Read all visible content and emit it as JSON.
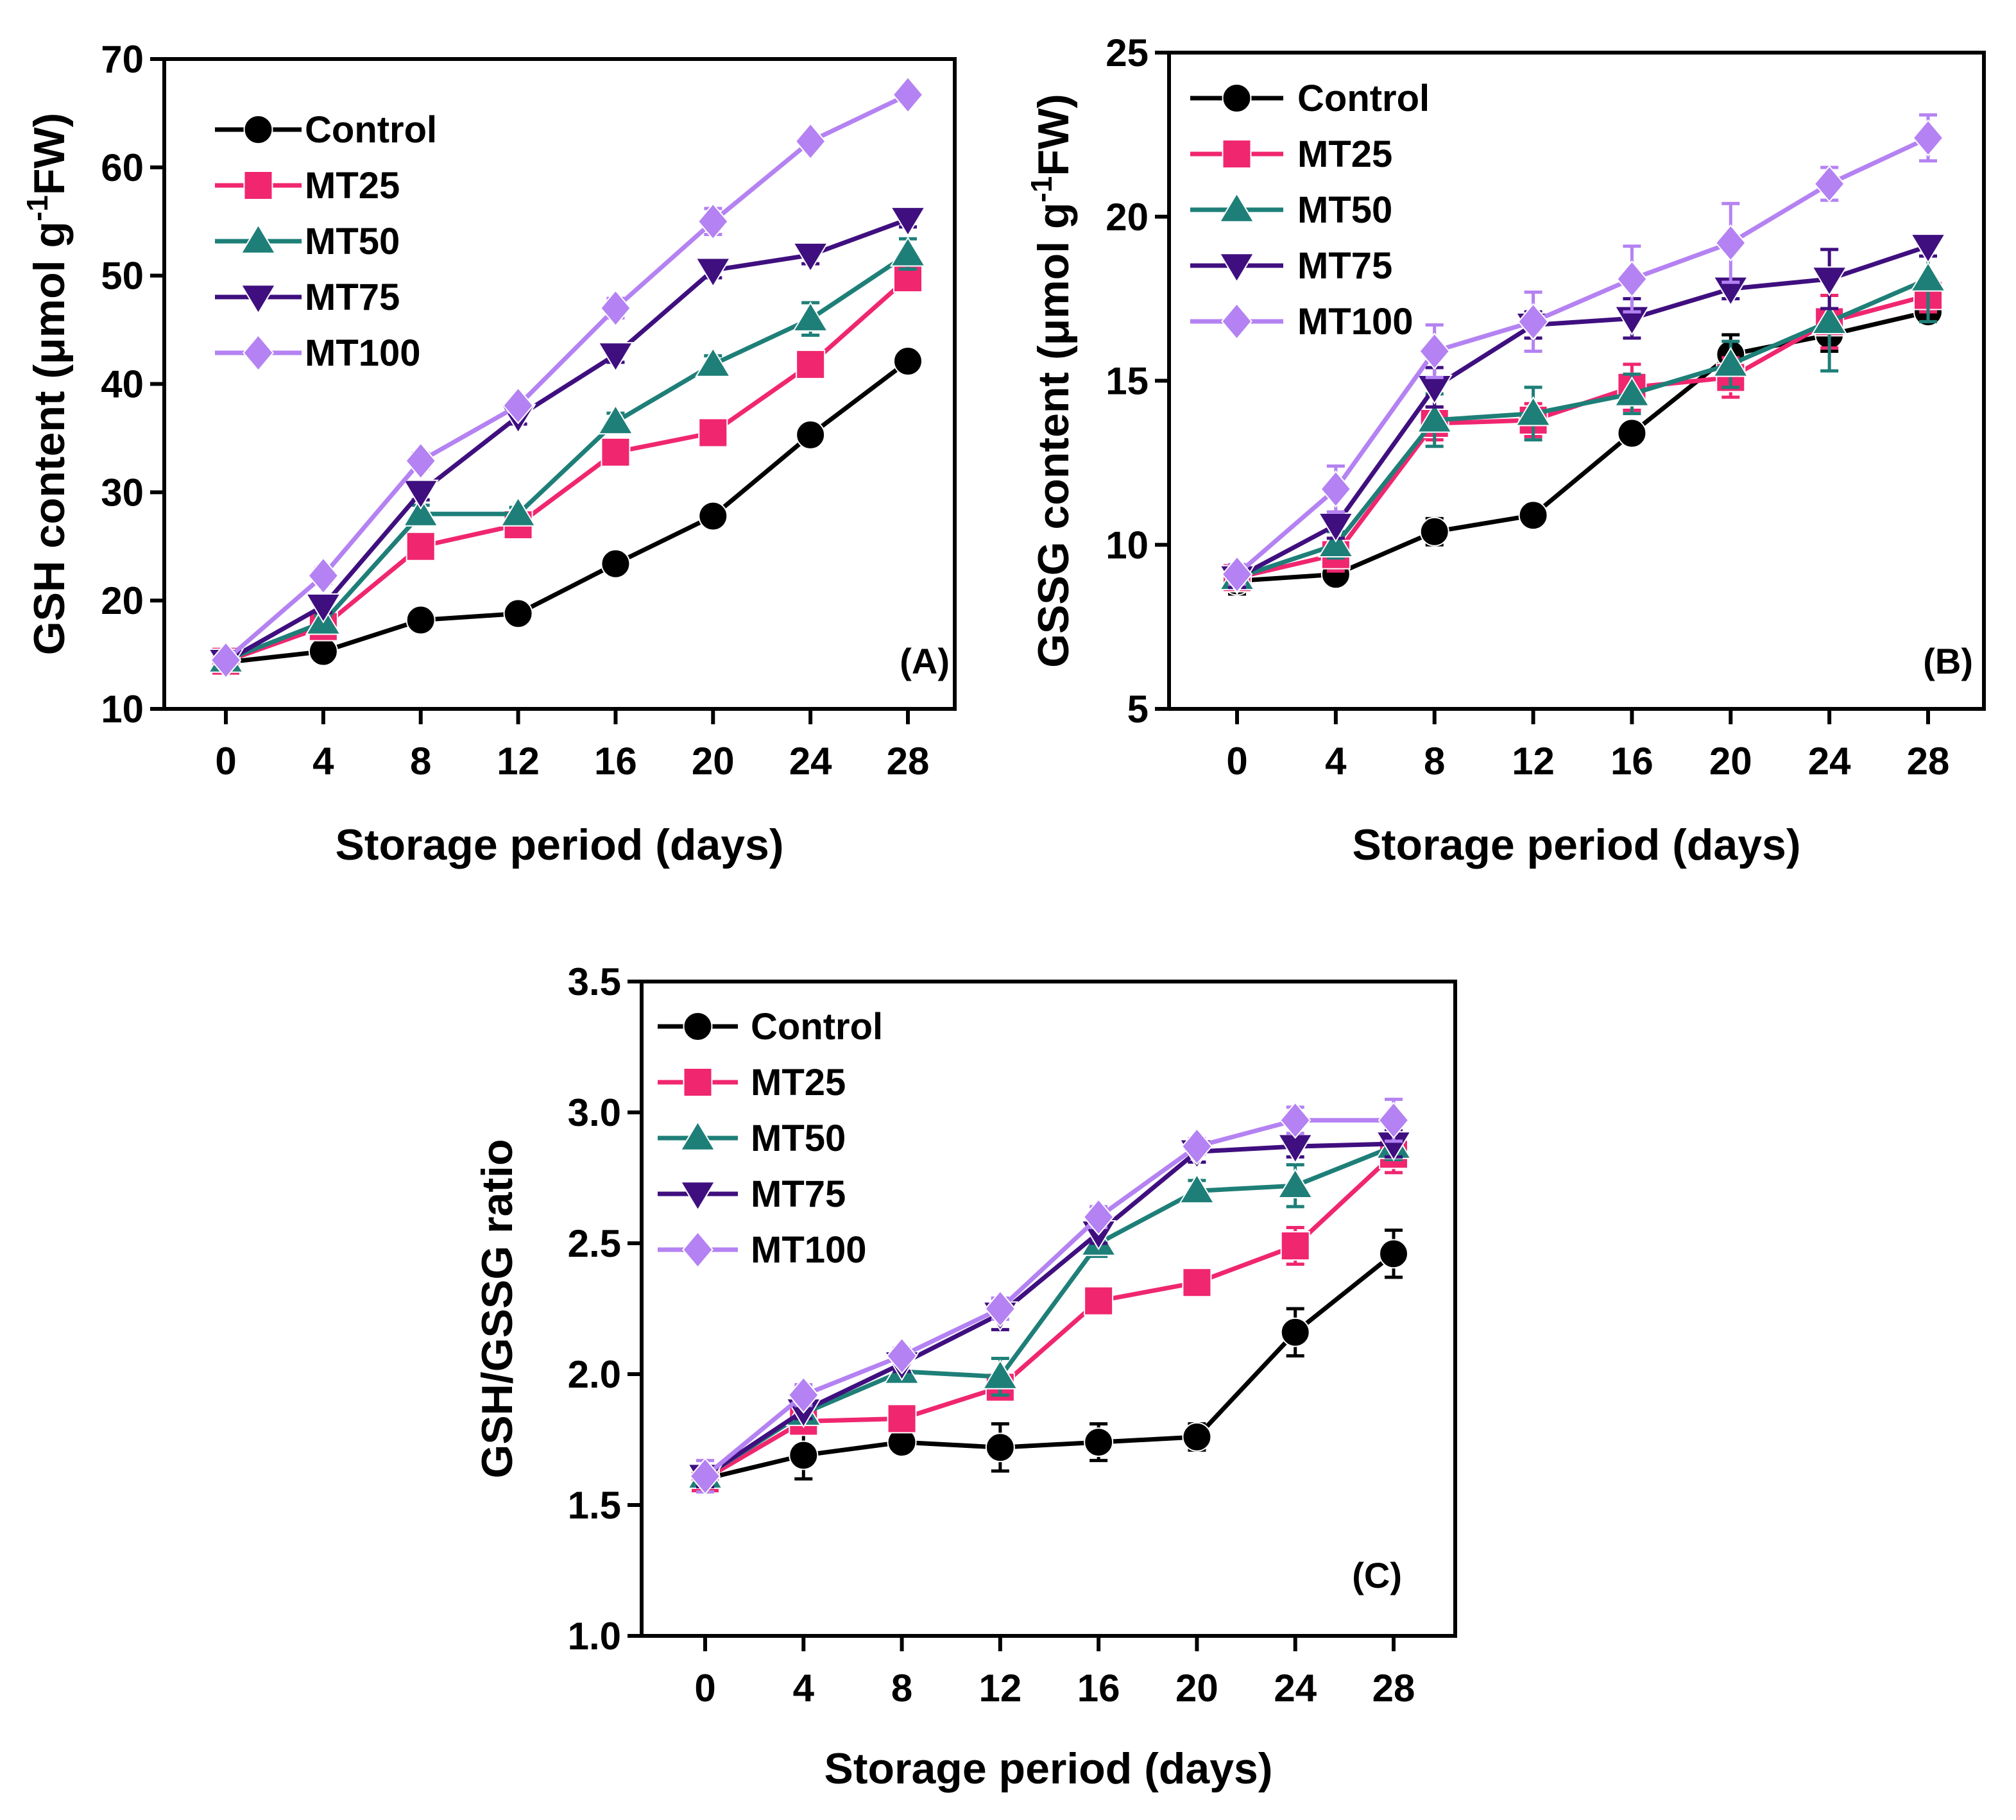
{
  "colors": {
    "Control": "#000000",
    "MT25": "#f0266f",
    "MT50": "#1e7f78",
    "MT75": "#3f0f7f",
    "MT100": "#b482f2"
  },
  "chart_data": [
    {
      "type": "line",
      "panel": "(A)",
      "xlabel": "Storage period (days)",
      "ylabel": "GSH content (μmol g-1FW)",
      "ylabel_parts": {
        "base": "GSH content (μmol g",
        "sup": "-1",
        "end": "FW)"
      },
      "x": [
        0,
        4,
        8,
        12,
        16,
        20,
        24,
        28
      ],
      "xticks": [
        "0",
        "4",
        "8",
        "12",
        "16",
        "20",
        "24",
        "28"
      ],
      "ylim": [
        10,
        70
      ],
      "yticks": [
        "10",
        "20",
        "30",
        "40",
        "50",
        "60",
        "70"
      ],
      "legend_position": "top-left",
      "series": [
        {
          "name": "Control",
          "marker": "circle",
          "values": [
            14.3,
            15.3,
            18.2,
            18.8,
            23.4,
            27.8,
            35.3,
            42.1
          ],
          "errors": [
            0.5,
            0.5,
            0.5,
            0.5,
            0.6,
            0.6,
            0.6,
            0.7
          ]
        },
        {
          "name": "MT25",
          "marker": "square",
          "values": [
            14.4,
            17.6,
            25.0,
            27.0,
            33.7,
            35.5,
            41.8,
            49.8
          ],
          "errors": [
            0.5,
            0.6,
            0.7,
            0.7,
            0.7,
            0.7,
            0.8,
            0.8
          ]
        },
        {
          "name": "MT50",
          "marker": "triangle-up",
          "values": [
            14.5,
            18.0,
            28.0,
            28.0,
            36.5,
            41.8,
            46.0,
            52.0
          ],
          "errors": [
            0.5,
            0.6,
            0.8,
            0.6,
            0.8,
            0.8,
            1.5,
            1.4
          ]
        },
        {
          "name": "MT75",
          "marker": "triangle-down",
          "values": [
            14.4,
            19.5,
            30.0,
            37.0,
            42.7,
            50.5,
            51.9,
            55.2
          ],
          "errors": [
            0.5,
            0.6,
            0.7,
            0.7,
            0.7,
            0.7,
            0.8,
            0.7
          ]
        },
        {
          "name": "MT100",
          "marker": "diamond",
          "values": [
            14.5,
            22.3,
            32.9,
            38.0,
            47.0,
            55.0,
            62.4,
            66.7
          ],
          "errors": [
            0.5,
            0.7,
            0.7,
            0.6,
            0.9,
            1.2,
            0.6,
            0.6
          ]
        }
      ]
    },
    {
      "type": "line",
      "panel": "(B)",
      "xlabel": "Storage period (days)",
      "ylabel": "GSSG content (μmol g-1FW)",
      "ylabel_parts": {
        "base": "GSSG content (μmol g",
        "sup": "-1",
        "end": "FW)"
      },
      "x": [
        0,
        4,
        8,
        12,
        16,
        20,
        24,
        28
      ],
      "xticks": [
        "0",
        "4",
        "8",
        "12",
        "16",
        "20",
        "24",
        "28"
      ],
      "ylim": [
        5,
        25
      ],
      "yticks": [
        "5",
        "10",
        "15",
        "20",
        "25"
      ],
      "legend_position": "top-left",
      "series": [
        {
          "name": "Control",
          "marker": "circle",
          "values": [
            8.9,
            9.1,
            10.4,
            10.9,
            13.4,
            15.8,
            16.4,
            17.1
          ],
          "errors": [
            0.4,
            0.3,
            0.4,
            0.3,
            0.3,
            0.6,
            0.5,
            0.3
          ]
        },
        {
          "name": "MT25",
          "marker": "square",
          "values": [
            9.0,
            9.7,
            13.7,
            13.8,
            14.8,
            15.1,
            16.8,
            17.6
          ],
          "errors": [
            0.3,
            0.5,
            0.5,
            0.5,
            0.7,
            0.6,
            0.8,
            0.5
          ]
        },
        {
          "name": "MT50",
          "marker": "triangle-up",
          "values": [
            9.0,
            10.0,
            13.8,
            14.0,
            14.6,
            15.5,
            16.8,
            18.1
          ],
          "errors": [
            0.3,
            0.4,
            0.8,
            0.8,
            0.6,
            0.7,
            1.5,
            1.3
          ]
        },
        {
          "name": "MT75",
          "marker": "triangle-down",
          "values": [
            9.0,
            10.6,
            14.8,
            16.7,
            16.9,
            17.8,
            18.1,
            19.1
          ],
          "errors": [
            0.3,
            0.4,
            0.6,
            0.4,
            0.6,
            0.3,
            0.9,
            0.3
          ]
        },
        {
          "name": "MT100",
          "marker": "diamond",
          "values": [
            9.1,
            11.7,
            15.9,
            16.8,
            18.1,
            19.2,
            21.0,
            22.4
          ],
          "errors": [
            0.3,
            0.7,
            0.8,
            0.9,
            1.0,
            1.2,
            0.5,
            0.7
          ]
        }
      ]
    },
    {
      "type": "line",
      "panel": "(C)",
      "xlabel": "Storage period (days)",
      "ylabel": "GSH/GSSG ratio",
      "ylabel_parts": {
        "base": "GSH/GSSG ratio",
        "sup": "",
        "end": ""
      },
      "x": [
        0,
        4,
        8,
        12,
        16,
        20,
        24,
        28
      ],
      "xticks": [
        "0",
        "4",
        "8",
        "12",
        "16",
        "20",
        "24",
        "28"
      ],
      "ylim": [
        1.0,
        3.5
      ],
      "yticks": [
        "1.0",
        "1.5",
        "2.0",
        "2.5",
        "3.0",
        "3.5"
      ],
      "legend_position": "top-left",
      "series": [
        {
          "name": "Control",
          "marker": "circle",
          "values": [
            1.6,
            1.69,
            1.74,
            1.72,
            1.74,
            1.76,
            2.16,
            2.46
          ],
          "errors": [
            0.04,
            0.09,
            0.03,
            0.09,
            0.07,
            0.05,
            0.09,
            0.09
          ]
        },
        {
          "name": "MT25",
          "marker": "square",
          "values": [
            1.6,
            1.82,
            1.83,
            1.95,
            2.28,
            2.35,
            2.49,
            2.84
          ],
          "errors": [
            0.04,
            0.04,
            0.03,
            0.04,
            0.05,
            0.04,
            0.07,
            0.07
          ]
        },
        {
          "name": "MT50",
          "marker": "triangle-up",
          "values": [
            1.61,
            1.85,
            2.01,
            1.99,
            2.5,
            2.7,
            2.72,
            2.87
          ],
          "errors": [
            0.04,
            0.04,
            0.04,
            0.07,
            0.05,
            0.04,
            0.08,
            0.05
          ]
        },
        {
          "name": "MT75",
          "marker": "triangle-down",
          "values": [
            1.61,
            1.86,
            2.04,
            2.23,
            2.54,
            2.85,
            2.87,
            2.88
          ],
          "errors": [
            0.04,
            0.03,
            0.03,
            0.06,
            0.04,
            0.04,
            0.04,
            0.05
          ]
        },
        {
          "name": "MT100",
          "marker": "diamond",
          "values": [
            1.61,
            1.92,
            2.07,
            2.25,
            2.6,
            2.87,
            2.97,
            2.97
          ],
          "errors": [
            0.06,
            0.04,
            0.03,
            0.04,
            0.04,
            0.03,
            0.05,
            0.08
          ]
        }
      ]
    }
  ]
}
